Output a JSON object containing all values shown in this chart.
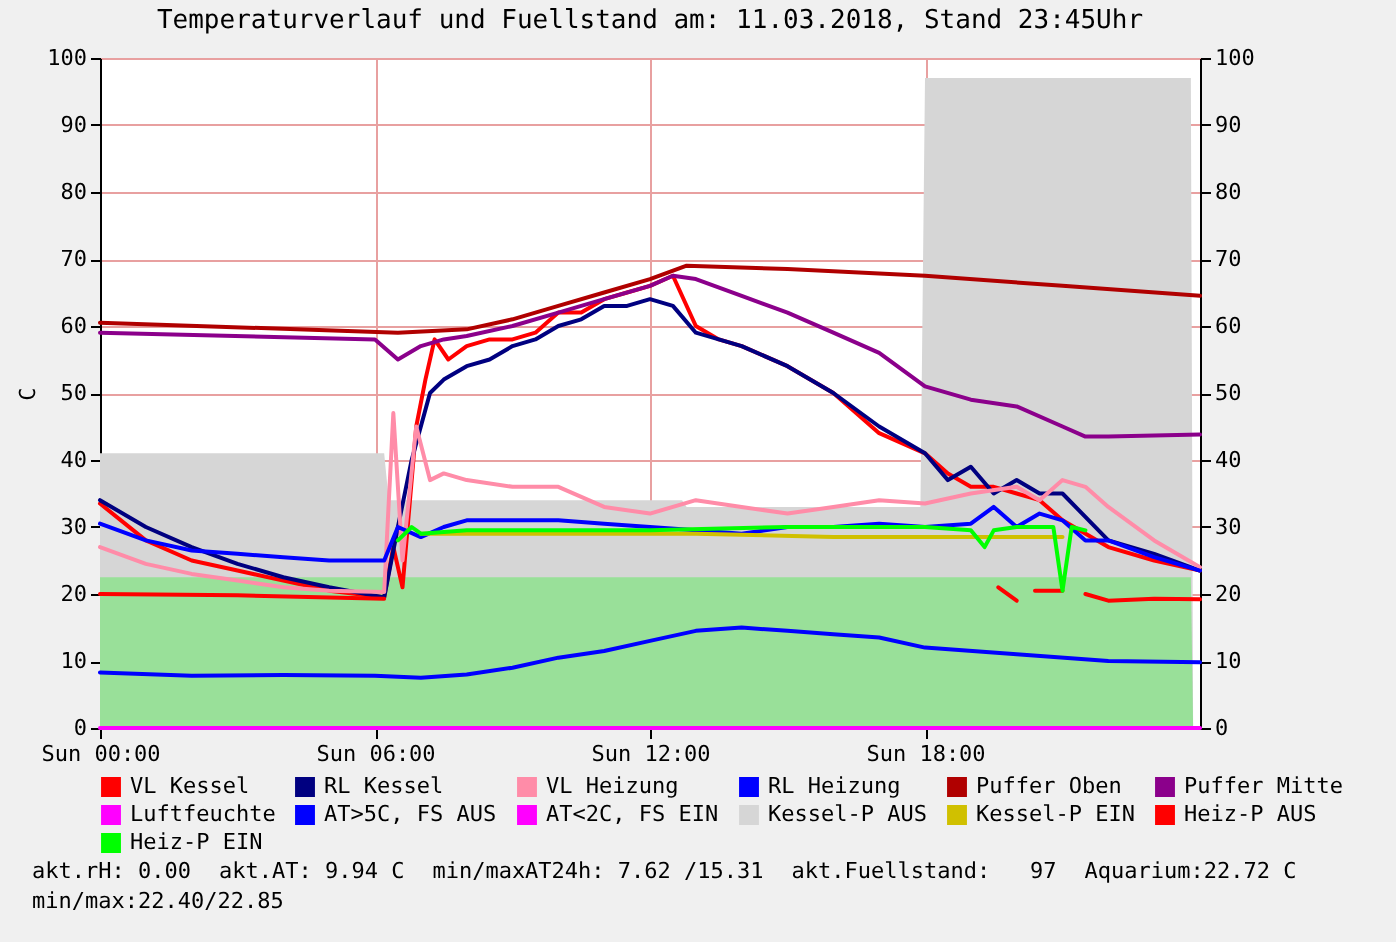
{
  "chart_data": {
    "type": "line",
    "title": "Temperaturverlauf und Fuellstand am: 11.03.2018, Stand 23:45Uhr",
    "ylabel": "C",
    "xlim": [
      "2018-03-11T00:00",
      "2018-03-12T00:00"
    ],
    "xticks": [
      {
        "value": "2018-03-11T00:00",
        "label": "Sun 00:00"
      },
      {
        "value": "2018-03-11T06:00",
        "label": "Sun 06:00"
      },
      {
        "value": "2018-03-11T12:00",
        "label": "Sun 12:00"
      },
      {
        "value": "2018-03-11T18:00",
        "label": "Sun 18:00"
      }
    ],
    "ylim": [
      0,
      100
    ],
    "yticks": [
      0,
      10,
      20,
      30,
      40,
      50,
      60,
      70,
      80,
      90,
      100
    ],
    "y2lim": [
      0,
      100
    ],
    "y2ticks": [
      0,
      10,
      20,
      30,
      40,
      50,
      60,
      70,
      80,
      90,
      100
    ],
    "grid": true,
    "legend": "bottom",
    "annotations": [
      "akt.rH: 0.00",
      "akt.AT: 9.94 C",
      "min/maxAT24h: 7.62 /15.31",
      "akt.Fuellstand:   97",
      "Aquarium:22.72 C",
      "min/max:22.40/22.85"
    ],
    "series": [
      {
        "name": "VL Kessel",
        "color": "#ff0000",
        "x": [
          "2018-03-11T00:00",
          "2018-03-11T01:00",
          "2018-03-11T02:00",
          "2018-03-11T03:00",
          "2018-03-11T04:00",
          "2018-03-11T05:00",
          "2018-03-11T06:12",
          "2018-03-11T06:24",
          "2018-03-11T06:36",
          "2018-03-11T06:54",
          "2018-03-11T07:06",
          "2018-03-11T07:18",
          "2018-03-11T07:36",
          "2018-03-11T08:00",
          "2018-03-11T08:30",
          "2018-03-11T09:00",
          "2018-03-11T09:30",
          "2018-03-11T10:00",
          "2018-03-11T10:30",
          "2018-03-11T11:00",
          "2018-03-11T11:30",
          "2018-03-11T12:00",
          "2018-03-11T12:30",
          "2018-03-11T13:00",
          "2018-03-11T13:30",
          "2018-03-11T14:00",
          "2018-03-11T15:00",
          "2018-03-11T16:00",
          "2018-03-11T17:00",
          "2018-03-11T18:00",
          "2018-03-11T18:30",
          "2018-03-11T19:00",
          "2018-03-11T19:30",
          "2018-03-11T20:00",
          "2018-03-11T20:30",
          "2018-03-11T21:00",
          "2018-03-11T22:00",
          "2018-03-11T23:00",
          "2018-03-12T00:00"
        ],
        "values": [
          33.5,
          28,
          25,
          23.5,
          22,
          20.5,
          19.5,
          27,
          21,
          45,
          52,
          58,
          55,
          57,
          58,
          58,
          59,
          62,
          62,
          64,
          65,
          66,
          67.5,
          60,
          58,
          57,
          54,
          50,
          44,
          41,
          38,
          36,
          36,
          35,
          34,
          31,
          27,
          25,
          23.5
        ]
      },
      {
        "name": "RL Kessel",
        "color": "#000080",
        "x": [
          "2018-03-11T00:00",
          "2018-03-11T01:00",
          "2018-03-11T02:00",
          "2018-03-11T03:00",
          "2018-03-11T04:00",
          "2018-03-11T05:00",
          "2018-03-11T06:12",
          "2018-03-11T06:30",
          "2018-03-11T06:48",
          "2018-03-11T07:00",
          "2018-03-11T07:12",
          "2018-03-11T07:30",
          "2018-03-11T08:00",
          "2018-03-11T08:30",
          "2018-03-11T09:00",
          "2018-03-11T09:30",
          "2018-03-11T10:00",
          "2018-03-11T10:30",
          "2018-03-11T11:00",
          "2018-03-11T11:30",
          "2018-03-11T12:00",
          "2018-03-11T12:30",
          "2018-03-11T13:00",
          "2018-03-11T13:30",
          "2018-03-11T14:00",
          "2018-03-11T15:00",
          "2018-03-11T16:00",
          "2018-03-11T17:00",
          "2018-03-11T18:00",
          "2018-03-11T18:30",
          "2018-03-11T19:00",
          "2018-03-11T19:30",
          "2018-03-11T20:00",
          "2018-03-11T20:30",
          "2018-03-11T21:00",
          "2018-03-11T22:00",
          "2018-03-11T23:00",
          "2018-03-12T00:00"
        ],
        "values": [
          34,
          30,
          27,
          24.5,
          22.5,
          21,
          19.5,
          30,
          40,
          45,
          50,
          52,
          54,
          55,
          57,
          58,
          60,
          61,
          63,
          63,
          64,
          63,
          59,
          58,
          57,
          54,
          50,
          45,
          41,
          37,
          39,
          35,
          37,
          35,
          35,
          28,
          26,
          23.5
        ]
      },
      {
        "name": "VL Heizung",
        "color": "#ff8ca8",
        "x": [
          "2018-03-11T00:00",
          "2018-03-11T01:00",
          "2018-03-11T02:00",
          "2018-03-11T03:00",
          "2018-03-11T04:00",
          "2018-03-11T05:00",
          "2018-03-11T06:12",
          "2018-03-11T06:24",
          "2018-03-11T06:36",
          "2018-03-11T06:54",
          "2018-03-11T07:12",
          "2018-03-11T07:30",
          "2018-03-11T08:00",
          "2018-03-11T09:00",
          "2018-03-11T10:00",
          "2018-03-11T11:00",
          "2018-03-11T12:00",
          "2018-03-11T13:00",
          "2018-03-11T14:00",
          "2018-03-11T15:00",
          "2018-03-11T16:00",
          "2018-03-11T17:00",
          "2018-03-11T18:00",
          "2018-03-11T19:00",
          "2018-03-11T20:00",
          "2018-03-11T20:30",
          "2018-03-11T21:00",
          "2018-03-11T21:30",
          "2018-03-11T22:00",
          "2018-03-11T23:00",
          "2018-03-12T00:00"
        ],
        "values": [
          27,
          24.5,
          23,
          22,
          21,
          20.5,
          20.3,
          47,
          25,
          45,
          37,
          38,
          37,
          36,
          36,
          33,
          32,
          34,
          33,
          32,
          33,
          34,
          33.5,
          35,
          36,
          34,
          37,
          36,
          33,
          28,
          24
        ]
      },
      {
        "name": "RL Heizung",
        "color": "#0000ff",
        "x": [
          "2018-03-11T00:00",
          "2018-03-11T01:00",
          "2018-03-11T02:00",
          "2018-03-11T03:00",
          "2018-03-11T04:00",
          "2018-03-11T05:00",
          "2018-03-11T06:12",
          "2018-03-11T06:30",
          "2018-03-11T07:00",
          "2018-03-11T07:30",
          "2018-03-11T08:00",
          "2018-03-11T09:00",
          "2018-03-11T10:00",
          "2018-03-11T11:00",
          "2018-03-11T12:00",
          "2018-03-11T13:00",
          "2018-03-11T14:00",
          "2018-03-11T15:00",
          "2018-03-11T16:00",
          "2018-03-11T17:00",
          "2018-03-11T18:00",
          "2018-03-11T19:00",
          "2018-03-11T19:30",
          "2018-03-11T20:00",
          "2018-03-11T20:30",
          "2018-03-11T21:00",
          "2018-03-11T21:30",
          "2018-03-11T22:00",
          "2018-03-11T23:00",
          "2018-03-12T00:00"
        ],
        "values": [
          30.5,
          28,
          26.5,
          26,
          25.5,
          25,
          25,
          30,
          28.5,
          30,
          31,
          31,
          31,
          30.5,
          30,
          29.5,
          29,
          30,
          30,
          30.5,
          30,
          30.5,
          33,
          30,
          32,
          31,
          28,
          28,
          25.5,
          23.5
        ]
      },
      {
        "name": "Puffer Oben",
        "color": "#b00000",
        "x": [
          "2018-03-11T00:00",
          "2018-03-11T06:30",
          "2018-03-11T08:00",
          "2018-03-11T09:00",
          "2018-03-11T10:00",
          "2018-03-11T11:00",
          "2018-03-11T12:00",
          "2018-03-11T12:48",
          "2018-03-11T15:00",
          "2018-03-11T18:00",
          "2018-03-11T21:00",
          "2018-03-12T00:00"
        ],
        "values": [
          60.5,
          59,
          59.5,
          61,
          63,
          65,
          67,
          69,
          68.5,
          67.5,
          66,
          64.5
        ]
      },
      {
        "name": "Puffer Mitte",
        "color": "#8b008b",
        "x": [
          "2018-03-11T00:00",
          "2018-03-11T06:00",
          "2018-03-11T06:30",
          "2018-03-11T07:00",
          "2018-03-11T07:30",
          "2018-03-11T08:00",
          "2018-03-11T09:00",
          "2018-03-11T10:00",
          "2018-03-11T11:00",
          "2018-03-11T12:00",
          "2018-03-11T12:30",
          "2018-03-11T13:00",
          "2018-03-11T14:00",
          "2018-03-11T15:00",
          "2018-03-11T16:00",
          "2018-03-11T17:00",
          "2018-03-11T18:00",
          "2018-03-11T19:00",
          "2018-03-11T20:00",
          "2018-03-11T21:00",
          "2018-03-11T21:30",
          "2018-03-11T22:00",
          "2018-03-12T00:00"
        ],
        "values": [
          59,
          58,
          55,
          57,
          58,
          58.5,
          60,
          62,
          64,
          66,
          67.5,
          67,
          64.5,
          62,
          59,
          56,
          51,
          49,
          48,
          45,
          43.5,
          43.5,
          43.8
        ]
      },
      {
        "name": "Luftfeuchte",
        "color": "#ff00ff",
        "x": [
          "2018-03-11T00:00",
          "2018-03-12T00:00"
        ],
        "values": [
          0,
          0
        ]
      },
      {
        "name": "AT>5C, FS AUS",
        "color": "#0000ff",
        "x": [
          "2018-03-11T00:00",
          "2018-03-11T02:00",
          "2018-03-11T04:00",
          "2018-03-11T06:00",
          "2018-03-11T07:00",
          "2018-03-11T08:00",
          "2018-03-11T09:00",
          "2018-03-11T10:00",
          "2018-03-11T11:00",
          "2018-03-11T12:00",
          "2018-03-11T13:00",
          "2018-03-11T14:00",
          "2018-03-11T15:00",
          "2018-03-11T16:00",
          "2018-03-11T17:00",
          "2018-03-11T18:00",
          "2018-03-11T20:00",
          "2018-03-11T22:00",
          "2018-03-12T00:00"
        ],
        "values": [
          8.3,
          7.8,
          7.9,
          7.8,
          7.5,
          8,
          9,
          10.5,
          11.5,
          13,
          14.5,
          15,
          14.5,
          14,
          13.5,
          12,
          11,
          10,
          9.8
        ]
      },
      {
        "name": "AT<2C, FS EIN",
        "color": "#ff00ff"
      },
      {
        "name": "Kessel-P AUS",
        "color": "#d6d6d6",
        "type": "area",
        "x": [
          "2018-03-11T00:00",
          "2018-03-11T06:12",
          "2018-03-11T06:18",
          "2018-03-11T12:42",
          "2018-03-11T12:48",
          "2018-03-11T17:54",
          "2018-03-11T18:00",
          "2018-03-11T23:48",
          "2018-03-11T23:51"
        ],
        "values": [
          41,
          41,
          34,
          34,
          33,
          33,
          97,
          97,
          0
        ]
      },
      {
        "name": "Kessel-P EIN",
        "color": "#d0c000",
        "x": [
          "2018-03-11T07:00",
          "2018-03-11T10:00",
          "2018-03-11T13:00",
          "2018-03-11T16:00",
          "2018-03-11T19:00",
          "2018-03-11T21:00"
        ],
        "values": [
          29,
          29,
          29,
          28.5,
          28.5,
          28.5
        ]
      },
      {
        "name": "Heiz-P AUS",
        "color": "#ff0000",
        "x": [
          "2018-03-11T00:00",
          "2018-03-11T03:00",
          "2018-03-11T06:12",
          "2018-03-11T06:18",
          "2018-03-11T19:30",
          "2018-03-11T19:36",
          "2018-03-11T20:00",
          "2018-03-11T20:18",
          "2018-03-11T20:24",
          "2018-03-11T21:00",
          "2018-03-11T21:24",
          "2018-03-11T21:30",
          "2018-03-11T22:00",
          "2018-03-11T23:00",
          "2018-03-12T00:00"
        ],
        "values": [
          20,
          19.8,
          19.3,
          null,
          null,
          21,
          19,
          null,
          20.5,
          20.5,
          null,
          20,
          19,
          19.3,
          19.2
        ]
      },
      {
        "name": "Heiz-P EIN",
        "color": "#00ff00",
        "x": [
          "2018-03-11T06:30",
          "2018-03-11T06:48",
          "2018-03-11T07:00",
          "2018-03-11T08:00",
          "2018-03-11T10:00",
          "2018-03-11T12:00",
          "2018-03-11T15:00",
          "2018-03-11T18:00",
          "2018-03-11T19:00",
          "2018-03-11T19:18",
          "2018-03-11T19:30",
          "2018-03-11T20:00",
          "2018-03-11T20:48",
          "2018-03-11T21:00",
          "2018-03-11T21:12",
          "2018-03-11T21:30"
        ],
        "values": [
          28,
          30,
          29,
          29.5,
          29.5,
          29.5,
          30,
          30,
          29.5,
          27,
          29.5,
          30,
          30,
          20.5,
          30,
          29.5
        ]
      },
      {
        "color": "#99e099",
        "type": "area",
        "x": [
          "2018-03-11T00:00",
          "2018-03-11T23:48",
          "2018-03-11T23:51"
        ],
        "values": [
          22.5,
          22.5,
          0
        ]
      }
    ]
  }
}
